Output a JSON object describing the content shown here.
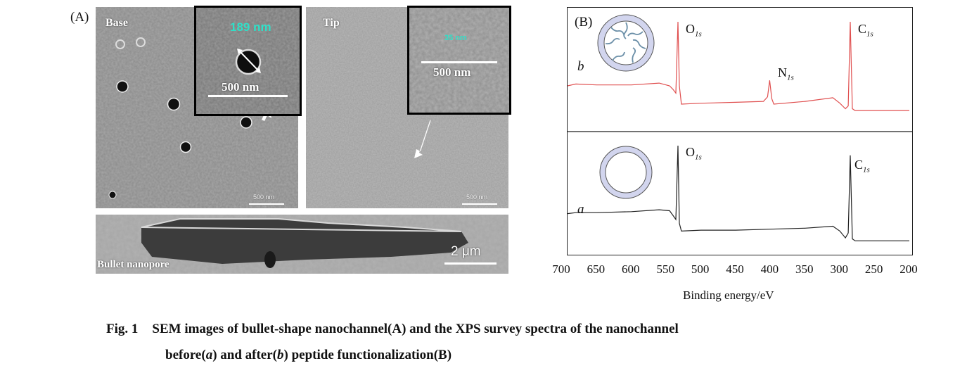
{
  "panel_a": {
    "label": "(A)",
    "base": {
      "label": "Base",
      "inset_size": "189 nm",
      "inset_scale": "500 nm",
      "scale": "500 nm"
    },
    "tip": {
      "label": "Tip",
      "inset_size": "35 nm",
      "inset_scale": "500 nm",
      "scale": "500 nm"
    },
    "cross_section": {
      "label": "Bullet nanopore",
      "scale": "2 μm"
    }
  },
  "panel_b": {
    "label": "(B)",
    "curve_b_label": "b",
    "curve_a_label": "a",
    "peaks_b": [
      {
        "element": "O",
        "orbital": "1s"
      },
      {
        "element": "N",
        "orbital": "1s"
      },
      {
        "element": "C",
        "orbital": "1s"
      }
    ],
    "peaks_a": [
      {
        "element": "O",
        "orbital": "1s"
      },
      {
        "element": "C",
        "orbital": "1s"
      }
    ],
    "x_ticks": [
      "700",
      "650",
      "600",
      "550",
      "500",
      "450",
      "400",
      "350",
      "300",
      "250",
      "200"
    ],
    "xlabel": "Binding energy/eV"
  },
  "chart_data": {
    "type": "line",
    "xlabel": "Binding energy/eV",
    "xlim": [
      700,
      200
    ],
    "series": [
      {
        "name": "b",
        "x": [
          700,
          680,
          650,
          600,
          560,
          545,
          540,
          536,
          533,
          531,
          528,
          500,
          450,
          410,
          404,
          401,
          398,
          395,
          350,
          310,
          300,
          292,
          288,
          285,
          282,
          278,
          250,
          200
        ],
        "y": [
          0.3,
          0.32,
          0.31,
          0.31,
          0.33,
          0.3,
          0.26,
          0.22,
          1.0,
          0.3,
          0.1,
          0.11,
          0.12,
          0.13,
          0.18,
          0.36,
          0.16,
          0.1,
          0.13,
          0.17,
          0.11,
          0.05,
          0.08,
          1.0,
          0.05,
          0.03,
          0.03,
          0.03
        ]
      },
      {
        "name": "a",
        "x": [
          700,
          680,
          650,
          600,
          560,
          545,
          540,
          536,
          533,
          531,
          528,
          500,
          450,
          400,
          350,
          310,
          300,
          292,
          288,
          285,
          282,
          278,
          250,
          200
        ],
        "y": [
          0.3,
          0.31,
          0.31,
          0.32,
          0.34,
          0.33,
          0.28,
          0.24,
          1.0,
          0.2,
          0.12,
          0.13,
          0.13,
          0.14,
          0.15,
          0.17,
          0.12,
          0.05,
          0.1,
          0.9,
          0.04,
          0.02,
          0.02,
          0.02
        ]
      }
    ]
  },
  "caption": {
    "fig": "Fig. 1",
    "line1": "SEM images of bullet-shape nanochannel(A) and the XPS survey spectra of the nanochannel",
    "line2_a": "before(",
    "line2_a_var": "a",
    "line2_b": ") and after(",
    "line2_b_var": "b",
    "line2_c": ") peptide functionalization(B)"
  }
}
